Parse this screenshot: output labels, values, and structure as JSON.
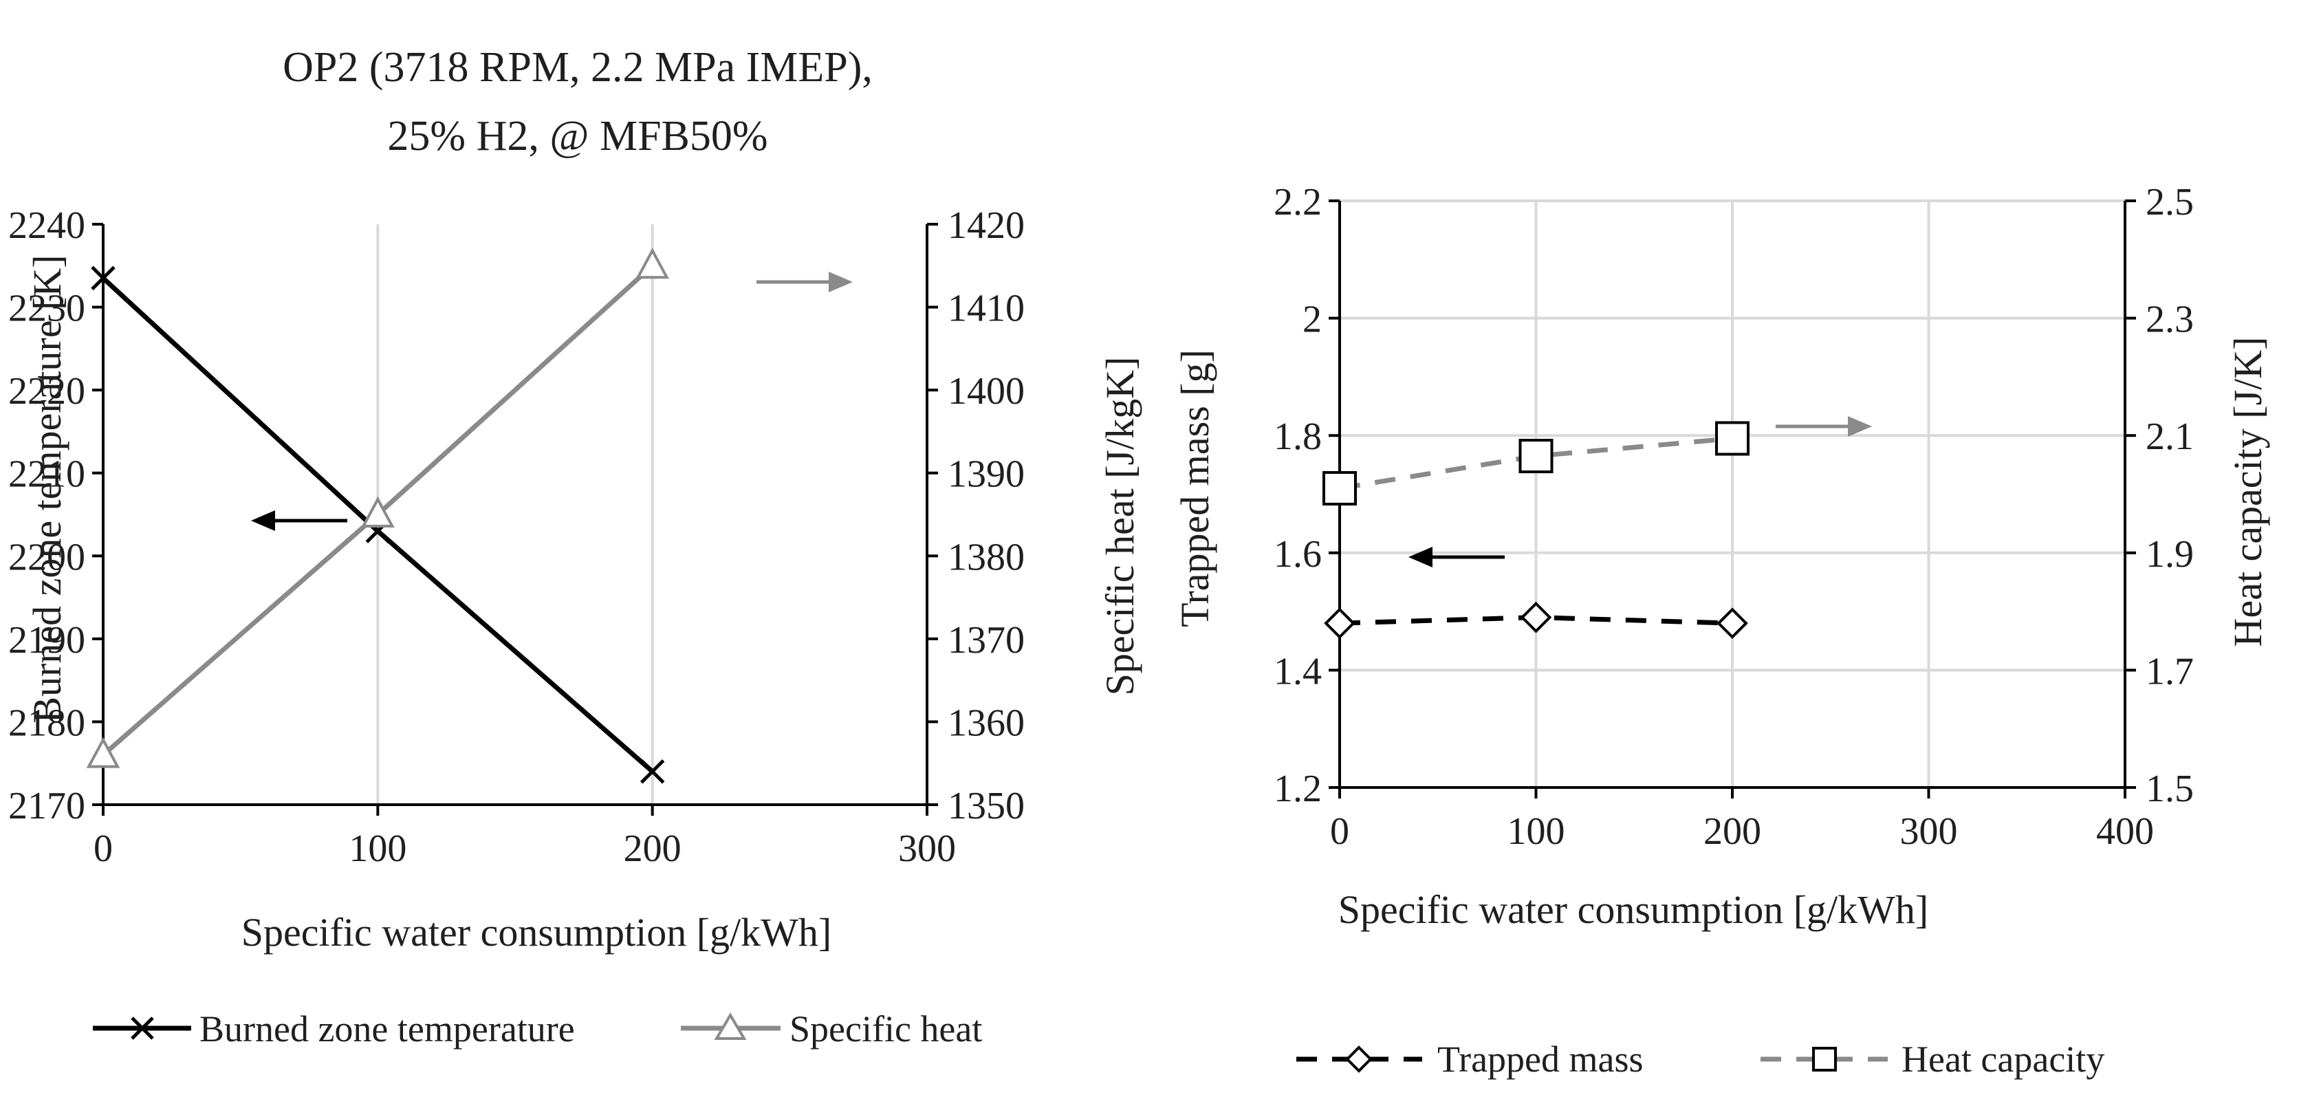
{
  "chart_data": [
    {
      "type": "line",
      "title_lines": [
        "OP2 (3718 RPM, 2.2 MPa IMEP),",
        "25% H2, @ MFB50%"
      ],
      "xlabel": "Specific water consumption [g/kWh]",
      "ylabel_left": "Burned zone temperature [K]",
      "ylabel_right": "Specific heat [J/kgK]",
      "xlim": [
        0,
        300
      ],
      "xticks": [
        0,
        100,
        200,
        300
      ],
      "xtick_labels": [
        "0",
        "100",
        "200",
        "300"
      ],
      "ylim_left": [
        2170,
        2240
      ],
      "yticks_left": [
        2170,
        2180,
        2190,
        2200,
        2210,
        2220,
        2230,
        2240
      ],
      "ytick_labels_left": [
        "2170",
        "2180",
        "2190",
        "2200",
        "2210",
        "2220",
        "2230",
        "2240"
      ],
      "ylim_right": [
        1350,
        1420
      ],
      "yticks_right": [
        1350,
        1360,
        1370,
        1380,
        1390,
        1400,
        1410,
        1420
      ],
      "ytick_labels_right": [
        "1350",
        "1360",
        "1370",
        "1380",
        "1390",
        "1400",
        "1410",
        "1420"
      ],
      "grid": "vertical",
      "legend_position": "bottom",
      "series": [
        {
          "name": "Burned zone temperature",
          "axis": "left",
          "marker": "x",
          "style": "solid",
          "color": "#000000",
          "x": [
            0,
            100,
            200
          ],
          "y": [
            2233.5,
            2203,
            2174
          ]
        },
        {
          "name": "Specific heat",
          "axis": "right",
          "marker": "triangle",
          "style": "solid",
          "color": "#8a8a8a",
          "x": [
            0,
            100,
            200
          ],
          "y": [
            1356,
            1385,
            1415
          ]
        }
      ]
    },
    {
      "type": "line",
      "xlabel": "Specific water consumption [g/kWh]",
      "ylabel_left": "Trapped mass [g]",
      "ylabel_right": "Heat capacity [J/K]",
      "xlim": [
        0,
        400
      ],
      "xticks": [
        0,
        100,
        200,
        300,
        400
      ],
      "xtick_labels": [
        "0",
        "100",
        "200",
        "300",
        "400"
      ],
      "ylim_left": [
        1.2,
        2.2
      ],
      "yticks_left": [
        1.2,
        1.4,
        1.6,
        1.8,
        2.0,
        2.2
      ],
      "ytick_labels_left": [
        "1.2",
        "1.4",
        "1.6",
        "1.8",
        "2",
        "2.2"
      ],
      "ylim_right": [
        1.5,
        2.5
      ],
      "yticks_right": [
        1.5,
        1.7,
        1.9,
        2.1,
        2.3,
        2.5
      ],
      "ytick_labels_right": [
        "1.5",
        "1.7",
        "1.9",
        "2.1",
        "2.3",
        "2.5"
      ],
      "grid": "both",
      "legend_position": "bottom",
      "series": [
        {
          "name": "Trapped mass",
          "axis": "left",
          "marker": "diamond",
          "style": "dashed",
          "color": "#000000",
          "x": [
            0,
            100,
            200
          ],
          "y": [
            1.48,
            1.49,
            1.48
          ]
        },
        {
          "name": "Heat capacity",
          "axis": "right",
          "marker": "square",
          "style": "dashed",
          "color": "#8a8a8a",
          "x": [
            0,
            100,
            200
          ],
          "y": [
            2.01,
            2.065,
            2.095
          ]
        }
      ]
    }
  ]
}
